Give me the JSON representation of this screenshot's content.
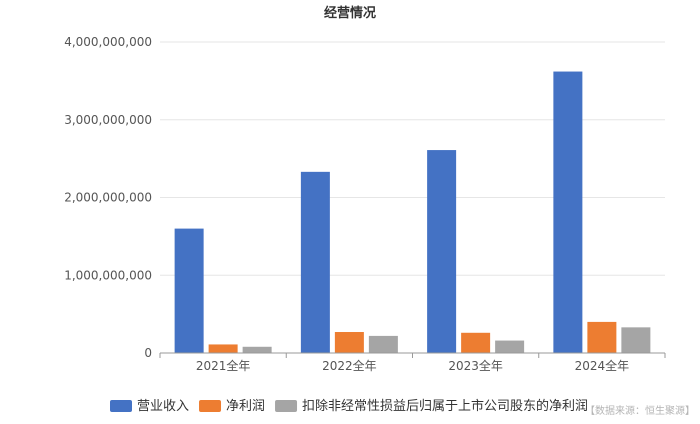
{
  "chart_data": {
    "type": "bar",
    "title": "经营情况",
    "categories": [
      "2021全年",
      "2022全年",
      "2023全年",
      "2024全年"
    ],
    "series": [
      {
        "name": "营业收入",
        "color": "#4472c4",
        "values": [
          1600000000,
          2330000000,
          2610000000,
          3620000000
        ]
      },
      {
        "name": "净利润",
        "color": "#ed7d31",
        "values": [
          110000000,
          270000000,
          260000000,
          400000000
        ]
      },
      {
        "name": "扣除非经常性损益后归属于上市公司股东的净利润",
        "color": "#a5a5a5",
        "values": [
          80000000,
          220000000,
          160000000,
          330000000
        ]
      }
    ],
    "y_ticks": [
      "0",
      "1,000,000,000",
      "2,000,000,000",
      "3,000,000,000",
      "4,000,000,000"
    ],
    "ylim": [
      0,
      4000000000
    ],
    "grid": true,
    "legend_position": "bottom"
  },
  "source_note": "【数据来源：恒生聚源】"
}
